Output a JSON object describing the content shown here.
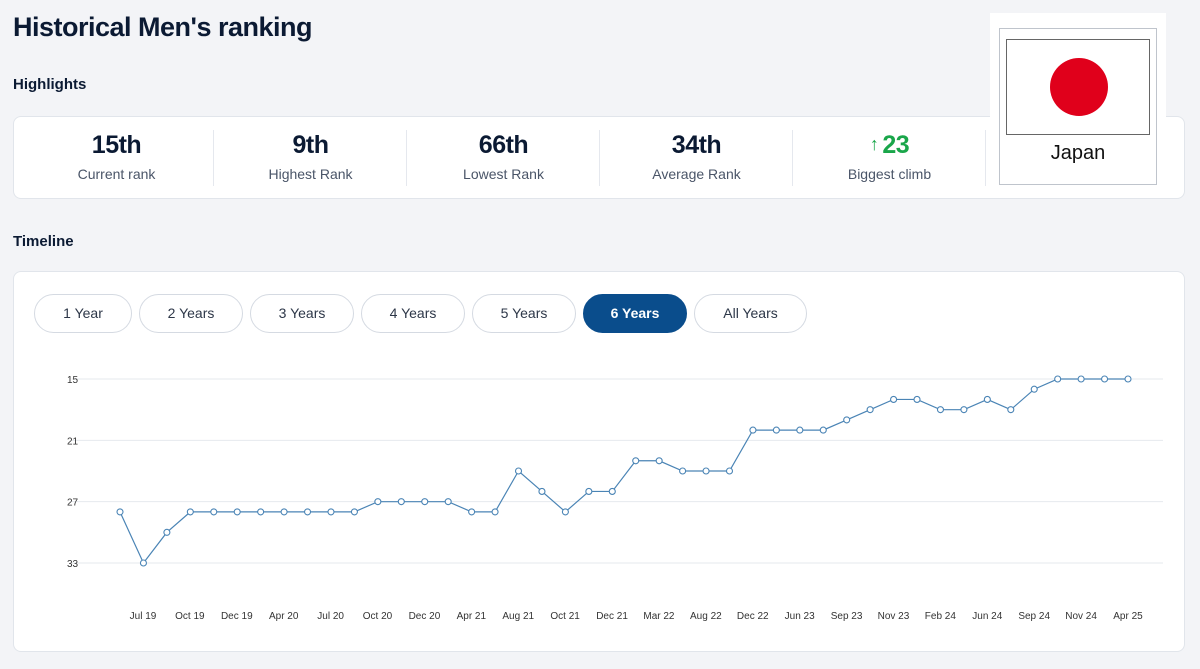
{
  "page": {
    "title": "Historical Men's ranking"
  },
  "highlights": {
    "heading": "Highlights",
    "stats": [
      {
        "value": "15th",
        "label": "Current rank"
      },
      {
        "value": "9th",
        "label": "Highest Rank"
      },
      {
        "value": "66th",
        "label": "Lowest Rank"
      },
      {
        "value": "34th",
        "label": "Average Rank"
      },
      {
        "value": "23",
        "label": "Biggest climb",
        "arrow": "↑"
      }
    ]
  },
  "flag": {
    "country": "Japan",
    "sun_color": "#e0001b"
  },
  "timeline": {
    "heading": "Timeline",
    "tabs": [
      {
        "label": "1 Year",
        "active": false
      },
      {
        "label": "2 Years",
        "active": false
      },
      {
        "label": "3 Years",
        "active": false
      },
      {
        "label": "4 Years",
        "active": false
      },
      {
        "label": "5 Years",
        "active": false
      },
      {
        "label": "6 Years",
        "active": true
      },
      {
        "label": "All Years",
        "active": false
      }
    ]
  },
  "colors": {
    "accent": "#0a4d8c",
    "line": "#4a84b5",
    "climb": "#1aa64a"
  },
  "chart_data": {
    "type": "line",
    "title": "",
    "xlabel": "",
    "ylabel": "",
    "y_inverted": true,
    "ylim": [
      15,
      35
    ],
    "y_ticks": [
      15,
      21,
      27,
      33
    ],
    "grid": true,
    "x_tick_labels": [
      "Jul 19",
      "Oct 19",
      "Dec 19",
      "Apr 20",
      "Jul 20",
      "Oct 20",
      "Dec 20",
      "Apr 21",
      "Aug 21",
      "Oct 21",
      "Dec 21",
      "Mar 22",
      "Aug 22",
      "Dec 22",
      "Jun 23",
      "Sep 23",
      "Nov 23",
      "Feb 24",
      "Jun 24",
      "Sep 24",
      "Nov 24",
      "Apr 25"
    ],
    "series": [
      {
        "values": [
          28,
          33,
          30,
          28,
          28,
          28,
          28,
          28,
          28,
          28,
          28,
          27,
          27,
          27,
          27,
          28,
          28,
          24,
          26,
          28,
          26,
          26,
          23,
          23,
          24,
          24,
          24,
          20,
          20,
          20,
          20,
          19,
          18,
          17,
          17,
          18,
          18,
          17,
          18,
          16,
          15,
          15,
          15,
          15
        ]
      }
    ]
  }
}
